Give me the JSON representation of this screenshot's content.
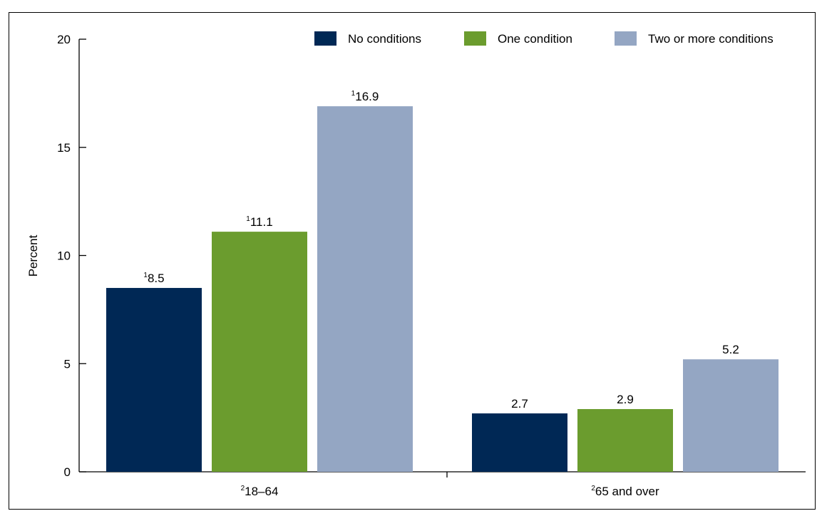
{
  "chart_data": {
    "type": "bar",
    "ylabel": "Percent",
    "xlabel": "",
    "ylim": [
      0,
      20
    ],
    "yticks": [
      0,
      5,
      10,
      15,
      20
    ],
    "legend_position": "top-right",
    "grid": false,
    "categories": [
      {
        "sup": "2",
        "label": "18–64"
      },
      {
        "sup": "2",
        "label": "65 and over"
      }
    ],
    "series": [
      {
        "name": "No conditions",
        "color": "#002855",
        "values": [
          8.5,
          2.7
        ],
        "value_labels": [
          {
            "sup": "1",
            "text": "8.5"
          },
          {
            "sup": "",
            "text": "2.7"
          }
        ]
      },
      {
        "name": "One condition",
        "color": "#6b9c2e",
        "values": [
          11.1,
          2.9
        ],
        "value_labels": [
          {
            "sup": "1",
            "text": "11.1"
          },
          {
            "sup": "",
            "text": "2.9"
          }
        ]
      },
      {
        "name": "Two or more conditions",
        "color": "#94a6c3",
        "values": [
          16.9,
          5.2
        ],
        "value_labels": [
          {
            "sup": "1",
            "text": "16.9"
          },
          {
            "sup": "",
            "text": "5.2"
          }
        ]
      }
    ]
  }
}
